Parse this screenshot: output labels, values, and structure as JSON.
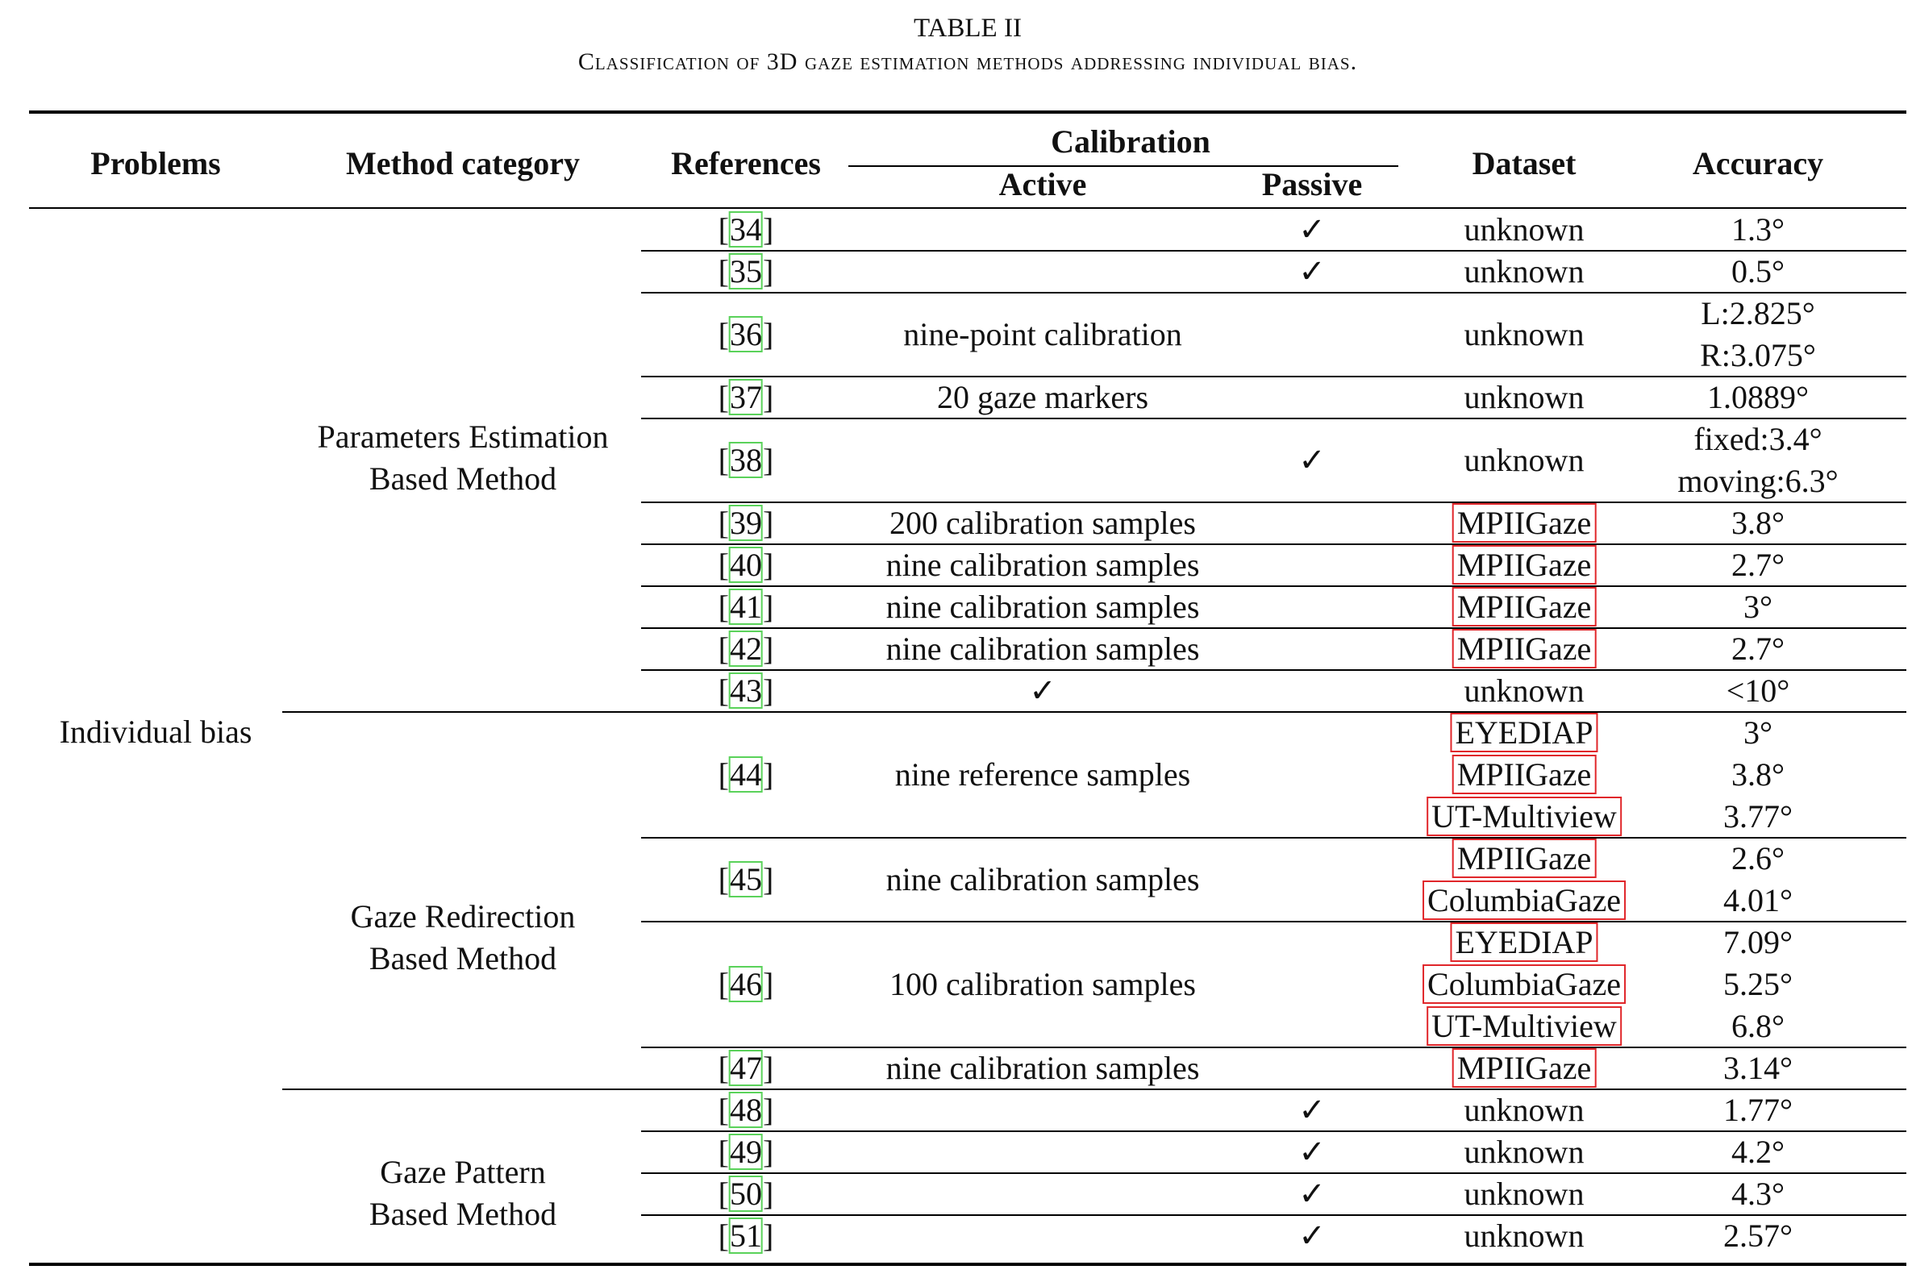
{
  "caption": {
    "number": "TABLE II",
    "title": "Classification of 3D gaze estimation methods addressing individual bias."
  },
  "headers": {
    "problems": "Problems",
    "method_category": "Method category",
    "references": "References",
    "calibration": "Calibration",
    "active": "Active",
    "passive": "Passive",
    "dataset": "Dataset",
    "accuracy": "Accuracy"
  },
  "problem": "Individual bias",
  "categories": [
    {
      "line1": "Parameters Estimation",
      "line2": "Based Method"
    },
    {
      "line1": "Gaze Redirection",
      "line2": "Based Method"
    },
    {
      "line1": "Gaze Pattern",
      "line2": "Based Method"
    }
  ],
  "check_mark": "✓",
  "rows": [
    {
      "ref": "34",
      "active": "",
      "passive": "✓",
      "dataset": [
        "unknown"
      ],
      "accuracy": [
        "1.3°"
      ]
    },
    {
      "ref": "35",
      "active": "",
      "passive": "✓",
      "dataset": [
        "unknown"
      ],
      "accuracy": [
        "0.5°"
      ]
    },
    {
      "ref": "36",
      "active": "nine-point calibration",
      "passive": "",
      "dataset": [
        "unknown"
      ],
      "accuracy": [
        "L:2.825°",
        "R:3.075°"
      ]
    },
    {
      "ref": "37",
      "active": "20 gaze markers",
      "passive": "",
      "dataset": [
        "unknown"
      ],
      "accuracy": [
        "1.0889°"
      ]
    },
    {
      "ref": "38",
      "active": "",
      "passive": "✓",
      "dataset": [
        "unknown"
      ],
      "accuracy": [
        "fixed:3.4°",
        "moving:6.3°"
      ]
    },
    {
      "ref": "39",
      "active": "200 calibration samples",
      "passive": "",
      "dataset": [
        "MPIIGaze"
      ],
      "accuracy": [
        "3.8°"
      ]
    },
    {
      "ref": "40",
      "active": "nine calibration samples",
      "passive": "",
      "dataset": [
        "MPIIGaze"
      ],
      "accuracy": [
        "2.7°"
      ]
    },
    {
      "ref": "41",
      "active": "nine calibration samples",
      "passive": "",
      "dataset": [
        "MPIIGaze"
      ],
      "accuracy": [
        "3°"
      ]
    },
    {
      "ref": "42",
      "active": "nine calibration samples",
      "passive": "",
      "dataset": [
        "MPIIGaze"
      ],
      "accuracy": [
        "2.7°"
      ]
    },
    {
      "ref": "43",
      "active": "✓",
      "passive": "",
      "dataset": [
        "unknown"
      ],
      "accuracy": [
        "<10°"
      ]
    },
    {
      "ref": "44",
      "active": "nine reference samples",
      "passive": "",
      "dataset": [
        "EYEDIAP",
        "MPIIGaze",
        "UT-Multiview"
      ],
      "accuracy": [
        "3°",
        "3.8°",
        "3.77°"
      ]
    },
    {
      "ref": "45",
      "active": "nine calibration samples",
      "passive": "",
      "dataset": [
        "MPIIGaze",
        "ColumbiaGaze"
      ],
      "accuracy": [
        "2.6°",
        "4.01°"
      ]
    },
    {
      "ref": "46",
      "active": "100 calibration samples",
      "passive": "",
      "dataset": [
        "EYEDIAP",
        "ColumbiaGaze",
        "UT-Multiview"
      ],
      "accuracy": [
        "7.09°",
        "5.25°",
        "6.8°"
      ]
    },
    {
      "ref": "47",
      "active": "nine calibration samples",
      "passive": "",
      "dataset": [
        "MPIIGaze"
      ],
      "accuracy": [
        "3.14°"
      ]
    },
    {
      "ref": "48",
      "active": "",
      "passive": "✓",
      "dataset": [
        "unknown"
      ],
      "accuracy": [
        "1.77°"
      ]
    },
    {
      "ref": "49",
      "active": "",
      "passive": "✓",
      "dataset": [
        "unknown"
      ],
      "accuracy": [
        "4.2°"
      ]
    },
    {
      "ref": "50",
      "active": "",
      "passive": "✓",
      "dataset": [
        "unknown"
      ],
      "accuracy": [
        "4.3°"
      ]
    },
    {
      "ref": "51",
      "active": "",
      "passive": "✓",
      "dataset": [
        "unknown"
      ],
      "accuracy": [
        "2.57°"
      ]
    }
  ]
}
